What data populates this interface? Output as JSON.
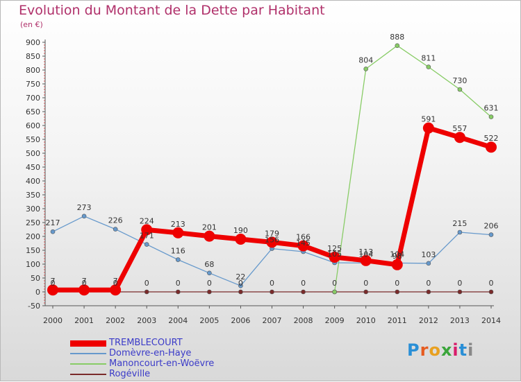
{
  "header": {
    "title": "Evolution du Montant de la Dette par Habitant",
    "subtitle": "(en €)"
  },
  "logo": {
    "text": "Proxiti"
  },
  "colors": {
    "title": "#b0306a",
    "legend_text": "#3b3bc8"
  },
  "chart_data": {
    "type": "line",
    "x": [
      "2000",
      "2001",
      "2002",
      "2003",
      "2004",
      "2005",
      "2006",
      "2007",
      "2008",
      "2009",
      "2010",
      "2011",
      "2012",
      "2013",
      "2014"
    ],
    "ylim": [
      -50,
      900
    ],
    "yticks": [
      -50,
      0,
      50,
      100,
      150,
      200,
      250,
      300,
      350,
      400,
      450,
      500,
      550,
      600,
      650,
      700,
      750,
      800,
      850,
      900
    ],
    "grid": false,
    "legend": "bottom-left",
    "series": [
      {
        "name": "TREMBLECOURT",
        "color": "#ee0000",
        "width": 7,
        "marker": 8,
        "values": [
          7,
          7,
          7,
          224,
          213,
          201,
          190,
          179,
          166,
          125,
          113,
          98,
          591,
          557,
          522
        ],
        "labels": [
          "7",
          "7",
          "7",
          "224",
          "213",
          "201",
          "190",
          "179",
          "166",
          "125",
          "113",
          "98",
          "591",
          "557",
          "522"
        ]
      },
      {
        "name": "Domèvre-en-Haye",
        "color": "#6699cc",
        "width": 1.3,
        "marker": 3,
        "values": [
          217,
          273,
          226,
          171,
          116,
          68,
          22,
          156,
          145,
          105,
          104,
          104,
          103,
          215,
          206
        ],
        "labels": [
          "217",
          "273",
          "226",
          "171",
          "116",
          "68",
          "22",
          "156",
          "145",
          "105",
          "104",
          "104",
          "103",
          "215",
          "206"
        ]
      },
      {
        "name": "Manoncourt-en-Woëvre",
        "color": "#88cc66",
        "width": 1.3,
        "marker": 3,
        "values": [
          null,
          null,
          null,
          null,
          null,
          null,
          null,
          null,
          null,
          0,
          804,
          888,
          811,
          730,
          631
        ],
        "labels": [
          "",
          "",
          "",
          "",
          "",
          "",
          "",
          "",
          "",
          "",
          "804",
          "888",
          "811",
          "730",
          "631"
        ]
      },
      {
        "name": "Rogéville",
        "color": "#7a2a2a",
        "width": 1.3,
        "marker": 3,
        "values": [
          0,
          0,
          0,
          0,
          0,
          0,
          0,
          0,
          0,
          0,
          0,
          0,
          0,
          0,
          0
        ],
        "labels": [
          "0",
          "0",
          "0",
          "0",
          "0",
          "0",
          "0",
          "0",
          "0",
          "0",
          "0",
          "0",
          "0",
          "0",
          "0"
        ]
      }
    ]
  }
}
